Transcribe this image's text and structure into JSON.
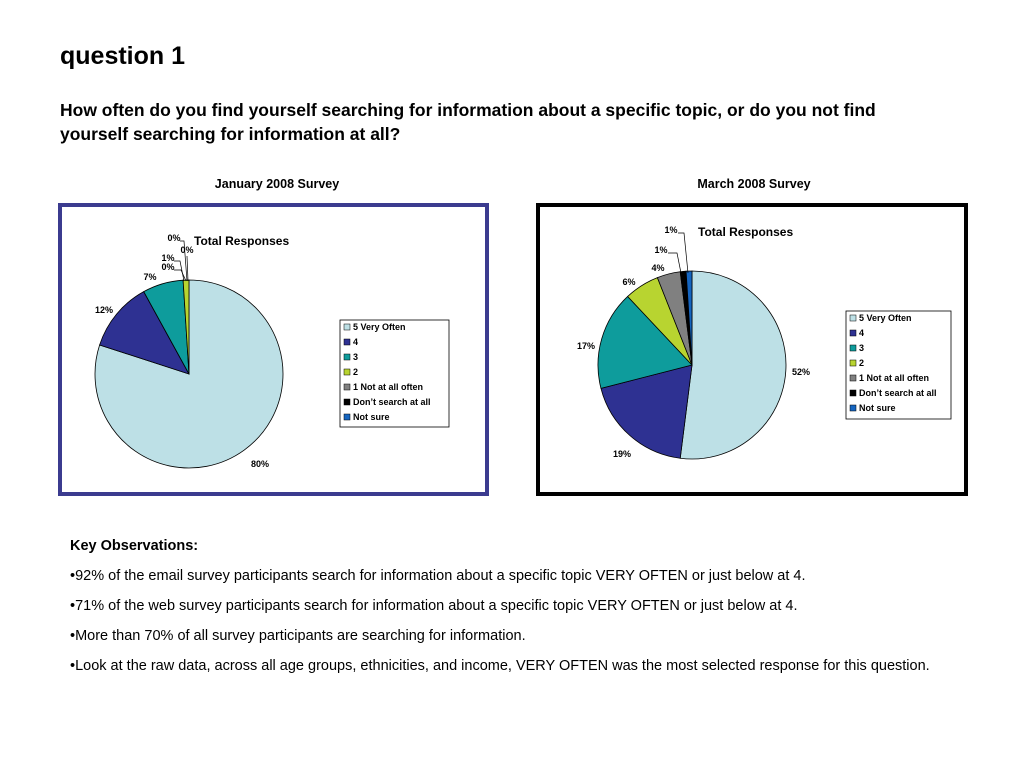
{
  "page": {
    "title": "question 1",
    "question": "How often do you find yourself searching for information about a specific topic, or do you not find yourself searching for information at all?"
  },
  "chart_data": [
    {
      "id": "jan",
      "type": "pie",
      "heading": "January 2008 Survey",
      "title": "Total Responses",
      "legend_position": "right",
      "categories": [
        "5 Very Often",
        "4",
        "3",
        "2",
        "1 Not at all often",
        "Don’t search at all",
        "Not sure"
      ],
      "values": [
        80,
        12,
        7,
        1,
        0,
        0,
        0
      ],
      "labels": [
        "80%",
        "12%",
        "7%",
        "1%",
        "0%",
        "0%",
        "0%"
      ],
      "colors": [
        "#bde0e6",
        "#2e3192",
        "#0e9c9c",
        "#b8d430",
        "#808080",
        "#000000",
        "#1565c0"
      ]
    },
    {
      "id": "mar",
      "type": "pie",
      "heading": "March 2008 Survey",
      "title": "Total Responses",
      "legend_position": "right",
      "categories": [
        "5 Very Often",
        "4",
        "3",
        "2",
        "1 Not at all often",
        "Don’t search at all",
        "Not sure"
      ],
      "values": [
        52,
        19,
        17,
        6,
        4,
        1,
        1
      ],
      "labels": [
        "52%",
        "19%",
        "17%",
        "6%",
        "4%",
        "1%",
        "1%"
      ],
      "colors": [
        "#bde0e6",
        "#2e3192",
        "#0e9c9c",
        "#b8d430",
        "#808080",
        "#000000",
        "#1565c0"
      ]
    }
  ],
  "notes": {
    "heading": "Key Observations:",
    "items": [
      "•92% of the email survey participants search for information about a specific topic VERY OFTEN or just below at 4.",
      "•71% of the web  survey participants search for information about a specific topic VERY OFTEN or just below at 4.",
      "•More than 70% of all survey participants are searching for information.",
      "•Look at the raw data, across all age groups, ethnicities, and income, VERY OFTEN was the most selected response for this question."
    ]
  }
}
